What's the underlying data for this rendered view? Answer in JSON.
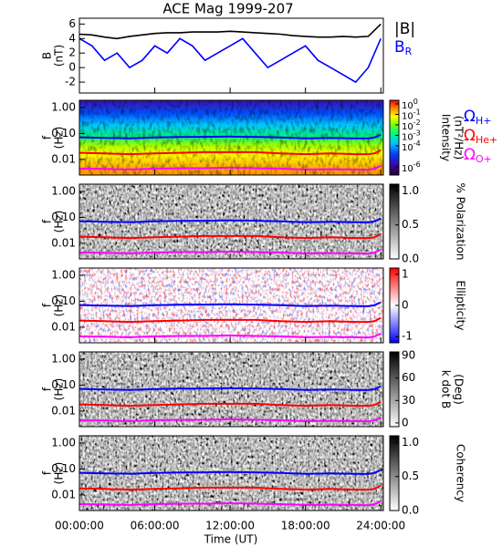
{
  "chart_data": [
    {
      "type": "line",
      "title": "ACE Mag 1999-207",
      "y_label": [
        "B",
        "(nT)"
      ],
      "xlim": [
        0,
        24.2
      ],
      "ylim": [
        -3.5,
        6.8
      ],
      "yticks": [
        -2,
        0,
        2,
        4,
        6
      ],
      "x": [
        0,
        1,
        2,
        3,
        4,
        5,
        6,
        7,
        8,
        9,
        10,
        11,
        12,
        13,
        14,
        15,
        16,
        17,
        18,
        19,
        20,
        21,
        22,
        23,
        24
      ],
      "series": [
        {
          "name": "|B|",
          "color": "#000000",
          "values": [
            4.6,
            4.5,
            4.2,
            4.0,
            4.3,
            4.5,
            4.7,
            4.8,
            4.8,
            4.9,
            4.9,
            4.9,
            5.0,
            4.9,
            4.8,
            4.7,
            4.6,
            4.4,
            4.3,
            4.2,
            4.2,
            4.3,
            4.2,
            4.3,
            6.0
          ]
        },
        {
          "name": "B",
          "subscript": "R",
          "color": "#0000ff",
          "values": [
            4,
            3,
            1,
            2,
            0,
            1,
            3,
            2,
            4,
            3,
            1,
            2,
            3,
            4,
            2,
            0,
            1,
            2,
            3,
            1,
            0,
            -1,
            -2,
            0,
            4
          ]
        }
      ]
    },
    {
      "type": "spectrogram",
      "y_label": [
        "f",
        "(Hz)"
      ],
      "log": true,
      "xlim": [
        0,
        24.2
      ],
      "ylim": [
        0.0025,
        1.9
      ],
      "yticks": [
        {
          "value": 1,
          "label": "1.00"
        },
        {
          "value": 0.1,
          "label": "0.10"
        },
        {
          "value": 0.01,
          "label": "0.01"
        }
      ],
      "x": [
        0,
        2,
        4,
        6,
        8,
        10,
        12,
        14,
        16,
        18,
        20,
        22,
        23,
        23.5,
        24
      ],
      "series": [
        {
          "name": "Ω",
          "subscript": "H+",
          "color": "#0000ff",
          "values": [
            0.071,
            0.068,
            0.065,
            0.07,
            0.073,
            0.074,
            0.076,
            0.074,
            0.07,
            0.065,
            0.067,
            0.065,
            0.064,
            0.07,
            0.091
          ]
        },
        {
          "name": "Ω",
          "subscript": "He+",
          "color": "#ff0000",
          "values": [
            0.018,
            0.017,
            0.016,
            0.017,
            0.018,
            0.019,
            0.019,
            0.019,
            0.017,
            0.016,
            0.017,
            0.016,
            0.016,
            0.017,
            0.023
          ]
        },
        {
          "name": "Ω",
          "subscript": "O+",
          "color": "#ff00ff",
          "values": [
            0.0044,
            0.0043,
            0.0041,
            0.0044,
            0.0046,
            0.0046,
            0.0048,
            0.0046,
            0.0044,
            0.0041,
            0.0042,
            0.0041,
            0.004,
            0.0044,
            0.0057
          ]
        }
      ],
      "colorbar": {
        "label": [
          "Intensity",
          "(nT²/Hz)"
        ],
        "colormap": "rainbow",
        "lim": [
          -6.8,
          0.35
        ],
        "ticks": [
          {
            "value": 0,
            "label": "10",
            "sup": "0"
          },
          {
            "value": -1,
            "label": "10",
            "sup": "-1"
          },
          {
            "value": -2,
            "label": "10",
            "sup": "-2"
          },
          {
            "value": -3,
            "label": "10",
            "sup": "-3"
          },
          {
            "value": -4,
            "label": "10",
            "sup": "-4"
          },
          {
            "value": -6,
            "label": "10",
            "sup": "-6"
          }
        ]
      }
    },
    {
      "type": "spectrogram",
      "y_label": [
        "f",
        "(Hz)"
      ],
      "log": true,
      "xlim": [
        0,
        24.2
      ],
      "ylim": [
        0.0025,
        1.9
      ],
      "yticks": [
        {
          "value": 1,
          "label": "1.00"
        },
        {
          "value": 0.1,
          "label": "0.10"
        },
        {
          "value": 0.01,
          "label": "0.01"
        }
      ],
      "x": [
        0,
        2,
        4,
        6,
        8,
        10,
        12,
        14,
        16,
        18,
        20,
        22,
        23,
        23.5,
        24
      ],
      "series": [
        {
          "color": "#0000ff",
          "values": [
            0.071,
            0.068,
            0.065,
            0.07,
            0.073,
            0.074,
            0.076,
            0.074,
            0.07,
            0.065,
            0.067,
            0.065,
            0.064,
            0.07,
            0.091
          ]
        },
        {
          "color": "#ff0000",
          "values": [
            0.018,
            0.017,
            0.016,
            0.017,
            0.018,
            0.019,
            0.019,
            0.019,
            0.017,
            0.016,
            0.017,
            0.016,
            0.016,
            0.017,
            0.023
          ]
        },
        {
          "color": "#ff00ff",
          "values": [
            0.0044,
            0.0043,
            0.0041,
            0.0044,
            0.0046,
            0.0046,
            0.0048,
            0.0046,
            0.0044,
            0.0041,
            0.0042,
            0.0041,
            0.004,
            0.0044,
            0.0057
          ]
        }
      ],
      "colorbar": {
        "label": [
          "% Polarization"
        ],
        "colormap": "gray",
        "lim": [
          0,
          1.1
        ],
        "ticks": [
          {
            "value": 1,
            "label": "1.0"
          },
          {
            "value": 0.5,
            "label": "0.5"
          },
          {
            "value": 0,
            "label": "0.0"
          }
        ]
      }
    },
    {
      "type": "spectrogram",
      "y_label": [
        "f",
        "(Hz)"
      ],
      "log": true,
      "xlim": [
        0,
        24.2
      ],
      "ylim": [
        0.0025,
        1.9
      ],
      "yticks": [
        {
          "value": 1,
          "label": "1.00"
        },
        {
          "value": 0.1,
          "label": "0.10"
        },
        {
          "value": 0.01,
          "label": "0.01"
        }
      ],
      "x": [
        0,
        2,
        4,
        6,
        8,
        10,
        12,
        14,
        16,
        18,
        20,
        22,
        23,
        23.5,
        24
      ],
      "series": [
        {
          "color": "#0000ff",
          "values": [
            0.071,
            0.068,
            0.065,
            0.07,
            0.073,
            0.074,
            0.076,
            0.074,
            0.07,
            0.065,
            0.067,
            0.065,
            0.064,
            0.07,
            0.091
          ]
        },
        {
          "color": "#ff0000",
          "values": [
            0.018,
            0.017,
            0.016,
            0.017,
            0.018,
            0.019,
            0.019,
            0.019,
            0.017,
            0.016,
            0.017,
            0.016,
            0.016,
            0.017,
            0.023
          ]
        },
        {
          "color": "#ff00ff",
          "values": [
            0.0044,
            0.0043,
            0.0041,
            0.0044,
            0.0046,
            0.0046,
            0.0048,
            0.0046,
            0.0044,
            0.0041,
            0.0042,
            0.0041,
            0.004,
            0.0044,
            0.0057
          ]
        }
      ],
      "colorbar": {
        "label": [
          "Ellipticity"
        ],
        "colormap": "bwr",
        "lim": [
          -1.2,
          1.2
        ],
        "ticks": [
          1,
          0,
          -1
        ]
      }
    },
    {
      "type": "spectrogram",
      "y_label": [
        "f",
        "(Hz)"
      ],
      "log": true,
      "xlim": [
        0,
        24.2
      ],
      "ylim": [
        0.0025,
        1.9
      ],
      "yticks": [
        {
          "value": 1,
          "label": "1.00"
        },
        {
          "value": 0.1,
          "label": "0.10"
        },
        {
          "value": 0.01,
          "label": "0.01"
        }
      ],
      "x": [
        0,
        2,
        4,
        6,
        8,
        10,
        12,
        14,
        16,
        18,
        20,
        22,
        23,
        23.5,
        24
      ],
      "series": [
        {
          "color": "#0000ff",
          "values": [
            0.071,
            0.068,
            0.065,
            0.07,
            0.073,
            0.074,
            0.076,
            0.074,
            0.07,
            0.065,
            0.067,
            0.065,
            0.064,
            0.07,
            0.091
          ]
        },
        {
          "color": "#ff0000",
          "values": [
            0.018,
            0.017,
            0.016,
            0.017,
            0.018,
            0.019,
            0.019,
            0.019,
            0.017,
            0.016,
            0.017,
            0.016,
            0.016,
            0.017,
            0.023
          ]
        },
        {
          "color": "#ff00ff",
          "values": [
            0.0044,
            0.0043,
            0.0041,
            0.0044,
            0.0046,
            0.0046,
            0.0048,
            0.0046,
            0.0044,
            0.0041,
            0.0042,
            0.0041,
            0.004,
            0.0044,
            0.0057
          ]
        }
      ],
      "colorbar": {
        "label": [
          "k dot B",
          "(Deg)"
        ],
        "colormap": "gray",
        "lim": [
          -5,
          95
        ],
        "ticks": [
          90,
          60,
          30,
          0
        ]
      }
    },
    {
      "type": "spectrogram",
      "y_label": [
        "f",
        "(Hz)"
      ],
      "log": true,
      "xlim": [
        0,
        24.2
      ],
      "ylim": [
        0.0025,
        1.9
      ],
      "yticks": [
        {
          "value": 1,
          "label": "1.00"
        },
        {
          "value": 0.1,
          "label": "0.10"
        },
        {
          "value": 0.01,
          "label": "0.01"
        }
      ],
      "x": [
        0,
        2,
        4,
        6,
        8,
        10,
        12,
        14,
        16,
        18,
        20,
        22,
        23,
        23.5,
        24
      ],
      "series": [
        {
          "color": "#0000ff",
          "values": [
            0.071,
            0.068,
            0.065,
            0.07,
            0.073,
            0.074,
            0.076,
            0.074,
            0.07,
            0.065,
            0.067,
            0.065,
            0.064,
            0.07,
            0.091
          ]
        },
        {
          "color": "#ff0000",
          "values": [
            0.018,
            0.017,
            0.016,
            0.017,
            0.018,
            0.019,
            0.019,
            0.019,
            0.017,
            0.016,
            0.017,
            0.016,
            0.016,
            0.017,
            0.023
          ]
        },
        {
          "color": "#ff00ff",
          "values": [
            0.0044,
            0.0043,
            0.0041,
            0.0044,
            0.0046,
            0.0046,
            0.0048,
            0.0046,
            0.0044,
            0.0041,
            0.0042,
            0.0041,
            0.004,
            0.0044,
            0.0057
          ]
        }
      ],
      "colorbar": {
        "label": [
          "Coherency"
        ],
        "colormap": "gray",
        "lim": [
          0,
          1.1
        ],
        "ticks": [
          {
            "value": 1,
            "label": "1.0"
          },
          {
            "value": 0.5,
            "label": "0.5"
          },
          {
            "value": 0,
            "label": "0.0"
          }
        ]
      },
      "x_label": "Time (UT)",
      "xticks": [
        {
          "value": 0,
          "label": "00:00:00"
        },
        {
          "value": 6,
          "label": "06:00:00"
        },
        {
          "value": 12,
          "label": "12:00:00"
        },
        {
          "value": 18,
          "label": "18:00:00"
        },
        {
          "value": 24,
          "label": "24:00:00"
        }
      ]
    }
  ]
}
